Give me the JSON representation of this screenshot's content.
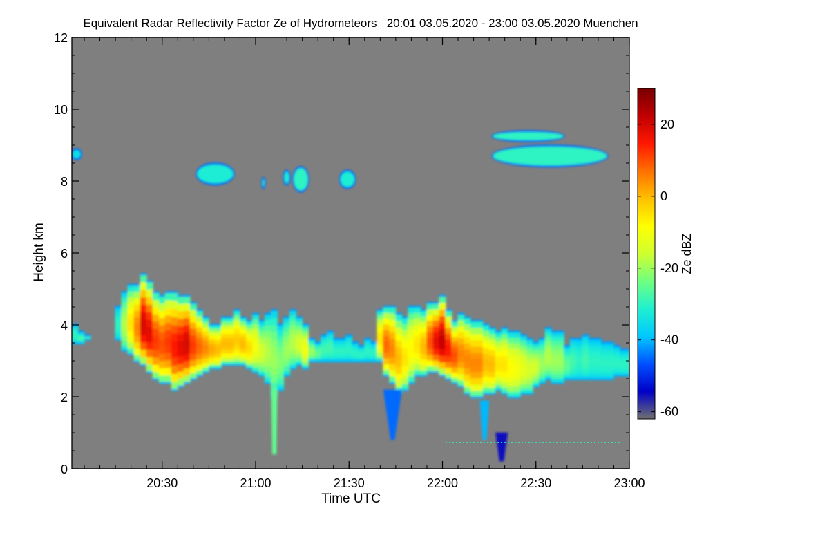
{
  "chart_data": {
    "type": "heatmap",
    "title": "Equivalent Radar Reflectivity Factor Ze of Hydrometeors   20:01 03.05.2020 - 23:00 03.05.2020 Muenchen",
    "xlabel": "Time UTC",
    "ylabel": "Height km",
    "x_range_minutes": [
      0,
      179
    ],
    "y_range_km": [
      0,
      12
    ],
    "x_ticks": [
      {
        "minute": 29,
        "label": "20:30"
      },
      {
        "minute": 59,
        "label": "21:00"
      },
      {
        "minute": 89,
        "label": "21:30"
      },
      {
        "minute": 119,
        "label": "22:00"
      },
      {
        "minute": 149,
        "label": "22:30"
      },
      {
        "minute": 179,
        "label": "23:00"
      }
    ],
    "y_ticks": [
      {
        "km": 0,
        "label": "0"
      },
      {
        "km": 2,
        "label": "2"
      },
      {
        "km": 4,
        "label": "4"
      },
      {
        "km": 6,
        "label": "6"
      },
      {
        "km": 8,
        "label": "8"
      },
      {
        "km": 10,
        "label": "10"
      },
      {
        "km": 12,
        "label": "12"
      }
    ],
    "colorbar": {
      "label": "Ze dBZ",
      "range_dbz": [
        -62,
        30
      ],
      "ticks": [
        {
          "dbz": 20,
          "label": "20"
        },
        {
          "dbz": 0,
          "label": "0"
        },
        {
          "dbz": -20,
          "label": "-20"
        },
        {
          "dbz": -40,
          "label": "-40"
        },
        {
          "dbz": -60,
          "label": "-60"
        }
      ],
      "colors": [
        "#707070",
        "#0000c8",
        "#0050ff",
        "#00c8ff",
        "#20f0d0",
        "#70ff80",
        "#d0ff30",
        "#ffff00",
        "#ffc000",
        "#ff7000",
        "#ff1800",
        "#c00000",
        "#780000"
      ]
    },
    "background_color": "#7f7f7f",
    "main_cloud_layer": {
      "minutes": [
        0,
        2,
        4,
        6,
        8,
        10,
        12,
        14,
        16,
        18,
        20,
        22,
        24,
        26,
        28,
        30,
        32,
        34,
        36,
        38,
        40,
        42,
        44,
        46,
        48,
        50,
        52,
        54,
        56,
        58,
        60,
        62,
        64,
        66,
        68,
        70,
        72,
        74,
        76,
        78,
        80,
        82,
        84,
        86,
        88,
        90,
        92,
        94,
        96,
        98,
        100,
        102,
        104,
        106,
        108,
        110,
        112,
        114,
        116,
        118,
        120,
        122,
        124,
        126,
        128,
        130,
        132,
        134,
        136,
        138,
        140,
        142,
        144,
        146,
        148,
        150,
        152,
        154,
        156,
        158,
        160,
        162,
        164,
        166,
        168,
        170,
        172,
        174,
        176,
        178,
        179
      ],
      "top_km": [
        4.0,
        3.8,
        3.7,
        null,
        null,
        null,
        null,
        4.5,
        4.9,
        5.1,
        5.1,
        5.4,
        5.2,
        4.9,
        4.8,
        4.9,
        4.9,
        4.8,
        4.8,
        4.6,
        4.4,
        4.2,
        4.0,
        4.0,
        4.2,
        4.2,
        4.4,
        4.2,
        4.1,
        4.3,
        4.1,
        4.3,
        4.4,
        4.0,
        4.2,
        4.4,
        4.2,
        4.0,
        3.6,
        3.5,
        3.7,
        3.8,
        3.6,
        3.6,
        3.7,
        3.5,
        3.4,
        3.6,
        3.5,
        4.4,
        4.5,
        4.5,
        4.3,
        4.2,
        4.5,
        4.5,
        4.4,
        4.6,
        4.6,
        4.8,
        4.4,
        4.1,
        4.3,
        4.2,
        4.1,
        4.1,
        4.0,
        3.9,
        3.8,
        3.9,
        3.8,
        3.8,
        3.7,
        3.6,
        3.5,
        3.6,
        3.9,
        3.8,
        3.8,
        3.4,
        3.6,
        3.6,
        3.7,
        3.6,
        3.6,
        3.5,
        3.5,
        3.4,
        3.3,
        3.3,
        3.3
      ],
      "base_km": [
        3.5,
        3.5,
        3.6,
        null,
        null,
        null,
        null,
        3.6,
        3.3,
        3.2,
        3.0,
        2.9,
        2.7,
        2.5,
        2.4,
        2.4,
        2.2,
        2.3,
        2.4,
        2.5,
        2.6,
        2.7,
        2.8,
        2.8,
        2.9,
        2.9,
        2.9,
        2.9,
        2.8,
        2.7,
        2.6,
        2.4,
        2.0,
        2.2,
        2.6,
        2.8,
        2.9,
        2.8,
        3.0,
        3.0,
        3.0,
        3.0,
        3.0,
        3.0,
        3.0,
        3.0,
        3.0,
        3.0,
        3.0,
        3.0,
        2.6,
        2.4,
        2.1,
        2.2,
        2.4,
        2.6,
        2.6,
        2.7,
        2.7,
        2.6,
        2.5,
        2.4,
        2.3,
        2.1,
        2.0,
        2.0,
        2.1,
        2.1,
        2.2,
        2.1,
        2.0,
        2.0,
        2.1,
        2.1,
        2.3,
        2.4,
        2.5,
        2.4,
        2.4,
        2.5,
        2.5,
        2.5,
        2.5,
        2.5,
        2.5,
        2.5,
        2.5,
        2.6,
        2.6,
        2.6,
        2.6
      ],
      "peak_dbz": [
        -30,
        -28,
        -28,
        null,
        null,
        null,
        null,
        -30,
        -18,
        -5,
        5,
        20,
        18,
        12,
        10,
        12,
        15,
        18,
        20,
        12,
        8,
        5,
        2,
        0,
        0,
        0,
        -2,
        0,
        -4,
        -10,
        -15,
        -18,
        -20,
        -22,
        -20,
        -18,
        -15,
        -10,
        -20,
        -25,
        -28,
        -28,
        -30,
        -30,
        -30,
        -30,
        -30,
        -30,
        -30,
        -5,
        8,
        5,
        0,
        -5,
        -8,
        -5,
        0,
        10,
        18,
        22,
        15,
        10,
        5,
        5,
        5,
        5,
        0,
        0,
        -5,
        -5,
        -8,
        -10,
        -12,
        -15,
        -15,
        -20,
        -18,
        -20,
        -20,
        -25,
        -28,
        -30,
        -28,
        -30,
        -30,
        -30,
        -30,
        -30,
        -30,
        -30,
        -30
      ]
    },
    "cirrus_patches": [
      {
        "minute_start": 0,
        "minute_end": 3,
        "km_low": 8.6,
        "km_high": 8.9,
        "dbz": -35
      },
      {
        "minute_start": 40,
        "minute_end": 52,
        "km_low": 7.9,
        "km_high": 8.5,
        "dbz": -32
      },
      {
        "minute_start": 61,
        "minute_end": 62,
        "km_low": 7.8,
        "km_high": 8.1,
        "dbz": -30
      },
      {
        "minute_start": 68,
        "minute_end": 70,
        "km_low": 7.9,
        "km_high": 8.3,
        "dbz": -32
      },
      {
        "minute_start": 71,
        "minute_end": 76,
        "km_low": 7.7,
        "km_high": 8.4,
        "dbz": -30
      },
      {
        "minute_start": 86,
        "minute_end": 91,
        "km_low": 7.8,
        "km_high": 8.3,
        "dbz": -32
      },
      {
        "minute_start": 135,
        "minute_end": 158,
        "km_low": 9.1,
        "km_high": 9.4,
        "dbz": -30
      },
      {
        "minute_start": 135,
        "minute_end": 172,
        "km_low": 8.4,
        "km_high": 9.0,
        "dbz": -30
      }
    ],
    "fall_streaks": [
      {
        "minute_start": 64,
        "minute_end": 66,
        "km_top": 2.2,
        "km_bottom": 0.4,
        "dbz": -25
      },
      {
        "minute_start": 100,
        "minute_end": 106,
        "km_top": 2.2,
        "km_bottom": 0.8,
        "dbz": -45
      },
      {
        "minute_start": 131,
        "minute_end": 134,
        "km_top": 1.9,
        "km_bottom": 0.8,
        "dbz": -40
      },
      {
        "minute_start": 136,
        "minute_end": 140,
        "km_top": 1.0,
        "km_bottom": 0.2,
        "dbz": -55
      }
    ]
  }
}
